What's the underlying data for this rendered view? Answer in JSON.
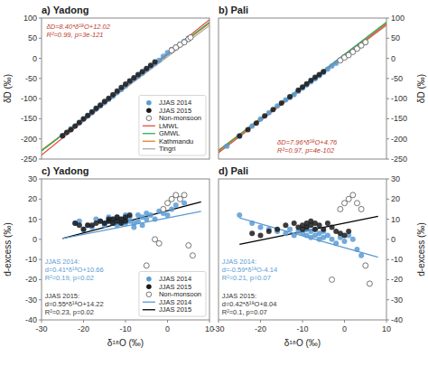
{
  "chart_data": [
    {
      "type": "scatter",
      "title": "a) Yadong",
      "y_label": "δD (‰)",
      "xlim": [
        -30,
        10
      ],
      "ylim": [
        -250,
        100
      ],
      "yticks": [
        -250,
        -200,
        -150,
        -100,
        -50,
        0,
        50,
        100
      ],
      "tick_labels": "y",
      "grid": false,
      "legend": "lower right",
      "annotations": [
        {
          "text": "δD=8.40*δ¹⁸O+12.02\nR²=0.99, p=3e-121",
          "color": "#c0392b"
        }
      ],
      "series": [
        {
          "name": "JJAS 2014",
          "type": "scatter",
          "color": "#5b9bd5",
          "x": [
            -25,
            -23,
            -21,
            -20,
            -19,
            -18,
            -17,
            -16,
            -15,
            -14,
            -13,
            -12,
            -11,
            -10,
            -9,
            -8,
            -7,
            -6,
            -5,
            -4,
            -3,
            -2,
            -1,
            0,
            1,
            2,
            3,
            4,
            5
          ],
          "values": [
            -192,
            -175,
            -160,
            -151,
            -143,
            -135,
            -126,
            -118,
            -110,
            -102,
            -94,
            -85,
            -77,
            -68,
            -59,
            -51,
            -44,
            -37,
            -28,
            -20,
            -13,
            -5,
            5,
            14,
            22,
            28,
            35,
            42,
            50
          ]
        },
        {
          "name": "JJAS 2015",
          "type": "scatter",
          "color": "#1a1a1a",
          "x": [
            -25,
            -24,
            -23,
            -22,
            -21,
            -20,
            -19,
            -18,
            -17,
            -16,
            -15,
            -14,
            -13,
            -12,
            -11,
            -10,
            -9,
            -8,
            -7,
            -6,
            -5,
            -4,
            -3
          ],
          "values": [
            -192,
            -184,
            -177,
            -168,
            -159,
            -150,
            -142,
            -133,
            -124,
            -116,
            -107,
            -99,
            -90,
            -81,
            -72,
            -64,
            -56,
            -48,
            -40,
            -33,
            -25,
            -17,
            -9
          ]
        },
        {
          "name": "Non-monsoon",
          "type": "scatter",
          "color": "#666666",
          "marker": "open",
          "x": [
            1,
            2,
            3,
            4,
            5,
            5.5
          ],
          "values": [
            20,
            27,
            34,
            40,
            48,
            52
          ]
        },
        {
          "name": "LMWL",
          "type": "line",
          "color": "#e74c3c",
          "x": [
            -30,
            10
          ],
          "values": [
            -239.98,
            96.02
          ]
        },
        {
          "name": "GMWL",
          "type": "line",
          "color": "#27ae60",
          "x": [
            -30,
            10
          ],
          "values": [
            -230,
            90
          ]
        },
        {
          "name": "Kathmandu",
          "type": "line",
          "color": "#e67e22",
          "x": [
            -30,
            10
          ],
          "values": [
            -228.5,
            87.5
          ]
        },
        {
          "name": "Tingri",
          "type": "line",
          "color": "#aaaaaa",
          "x": [
            -30,
            10
          ],
          "values": [
            -228.5,
            81.5
          ]
        }
      ]
    },
    {
      "type": "scatter",
      "title": "b) Pali",
      "y_label": "δD (‰)",
      "xlim": [
        -30,
        10
      ],
      "ylim": [
        -250,
        100
      ],
      "yticks": [
        -250,
        -200,
        -150,
        -100,
        -50,
        0,
        50,
        100
      ],
      "tick_labels": "y",
      "grid": false,
      "annotations": [
        {
          "text": "δD=7.96*δ¹⁸O+4.76\nR²=0.97, p=4e-102",
          "color": "#c0392b"
        }
      ],
      "series": [
        {
          "type": "scatter",
          "color": "#5b9bd5",
          "x": [
            -28,
            -25,
            -22,
            -20,
            -18,
            -16,
            -14,
            -13,
            -12,
            -11,
            -10,
            -9,
            -8,
            -7,
            -6,
            -5,
            -4,
            -3,
            -2,
            -1,
            0,
            2,
            3,
            4,
            5
          ],
          "values": [
            -218,
            -193,
            -168,
            -151,
            -135,
            -118,
            -103,
            -97,
            -90,
            -82,
            -74,
            -66,
            -58,
            -51,
            -43,
            -35,
            -27,
            -19,
            -12,
            -4,
            4,
            18,
            26,
            32,
            40
          ]
        },
        {
          "type": "scatter",
          "color": "#1a1a1a",
          "x": [
            -25,
            -23,
            -21,
            -19,
            -17,
            -15,
            -13,
            -11,
            -10,
            -9,
            -8,
            -7,
            -6,
            -5
          ],
          "values": [
            -193,
            -177,
            -161,
            -143,
            -127,
            -111,
            -95,
            -79,
            -71,
            -63,
            -55,
            -47,
            -40,
            -33
          ]
        },
        {
          "type": "scatter",
          "color": "#666666",
          "marker": "open",
          "x": [
            -1,
            0,
            1,
            2,
            3,
            4,
            5
          ],
          "values": [
            -5,
            2,
            8,
            16,
            24,
            32,
            40
          ]
        },
        {
          "type": "line",
          "color": "#e74c3c",
          "x": [
            -30,
            10
          ],
          "values": [
            -234.04,
            84.36
          ]
        },
        {
          "type": "line",
          "color": "#27ae60",
          "x": [
            -30,
            10
          ],
          "values": [
            -230,
            90
          ]
        },
        {
          "type": "line",
          "color": "#e67e22",
          "x": [
            -30,
            10
          ],
          "values": [
            -228.5,
            87.5
          ]
        },
        {
          "type": "line",
          "color": "#aaaaaa",
          "x": [
            -30,
            10
          ],
          "values": [
            -228.5,
            81.5
          ]
        }
      ]
    },
    {
      "type": "scatter",
      "title": "c) Yadong",
      "x_label": "δ¹⁸O (‰)",
      "y_label": "d-excess (‰)",
      "xlim": [
        -30,
        10
      ],
      "ylim": [
        -40,
        30
      ],
      "xticks": [
        -30,
        -20,
        -10,
        0,
        10
      ],
      "yticks": [
        -40,
        -30,
        -20,
        -10,
        0,
        10,
        20,
        30
      ],
      "grid": false,
      "legend": "lower right",
      "annotations": [
        {
          "text": "JJAS 2014:\nd=0.41*δ¹⁸O+10.66\nR²=0.19, p=0.02",
          "color": "#5b9bd5"
        },
        {
          "text": "JJAS 2015:\nd=0.55*δ¹⁸O+14.22\nR²=0.23, p=0.02",
          "color": "#333333"
        }
      ],
      "series": [
        {
          "name": "JJAS 2014",
          "type": "scatter",
          "color": "#5b9bd5",
          "x": [
            -22,
            -21,
            -20,
            -19,
            -18,
            -17,
            -16,
            -15,
            -15,
            -14,
            -14,
            -13,
            -13,
            -12,
            -12,
            -12,
            -11,
            -11,
            -10,
            -10,
            -10,
            -9,
            -9,
            -8,
            -8,
            -7,
            -7,
            -6,
            -6,
            -5,
            -5,
            -4,
            -3,
            -2,
            -1,
            0,
            1,
            2,
            3,
            4
          ],
          "values": [
            8,
            9,
            5,
            7,
            6,
            10,
            9,
            8,
            7,
            11,
            9,
            8,
            10,
            11,
            9,
            7,
            10,
            8,
            12,
            10,
            8,
            11,
            9,
            8,
            6,
            12,
            9,
            11,
            7,
            13,
            10,
            12,
            10,
            14,
            13,
            12,
            15,
            17,
            20,
            18
          ]
        },
        {
          "name": "JJAS 2015",
          "type": "scatter",
          "color": "#1a1a1a",
          "x": [
            -22,
            -21,
            -20,
            -19,
            -18,
            -17,
            -16,
            -15,
            -14,
            -14,
            -13,
            -13,
            -12,
            -12,
            -11,
            -11,
            -10,
            -10,
            -9
          ],
          "values": [
            8,
            7,
            5,
            7,
            7,
            8,
            9,
            8,
            10,
            9,
            10,
            8,
            11,
            9,
            10,
            8,
            11,
            9,
            12
          ]
        },
        {
          "name": "Non-monsoon",
          "type": "scatter",
          "color": "#666666",
          "marker": "open",
          "x": [
            -5,
            -3,
            -2,
            -1,
            0,
            1,
            2,
            3,
            4,
            5,
            6
          ],
          "values": [
            -13,
            0,
            -2,
            15,
            18,
            20,
            22,
            20,
            22,
            -3,
            -8
          ]
        },
        {
          "name": "JJAS 2014",
          "type": "line",
          "color": "#5b9bd5",
          "x": [
            -25,
            8
          ],
          "values": [
            0.41,
            13.94
          ]
        },
        {
          "name": "JJAS 2015",
          "type": "line",
          "color": "#000000",
          "x": [
            -25,
            8
          ],
          "values": [
            0.47,
            18.62
          ]
        }
      ]
    },
    {
      "type": "scatter",
      "title": "d) Pali",
      "x_label": "δ¹⁸O (‰)",
      "y_label": "d-excess (‰)",
      "xlim": [
        -30,
        10
      ],
      "ylim": [
        -40,
        30
      ],
      "xticks": [
        -30,
        -20,
        -10,
        0,
        10
      ],
      "yticks": [
        -40,
        -30,
        -20,
        -10,
        0,
        10,
        20,
        30
      ],
      "grid": false,
      "annotations": [
        {
          "text": "JJAS 2014:\nd=-0.59*δ¹⁸O-4.14\nR²=0.21, p=0.07",
          "color": "#5b9bd5"
        },
        {
          "text": "JJAS 2015:\nd=0.42*δ¹⁸O+8.04\nR²=0.1, p=0.07",
          "color": "#333333"
        }
      ],
      "series": [
        {
          "type": "scatter",
          "color": "#5b9bd5",
          "x": [
            -25,
            -22,
            -20,
            -18,
            -16,
            -14,
            -13,
            -12,
            -11,
            -10,
            -9,
            -9,
            -8,
            -8,
            -7,
            -7,
            -6,
            -6,
            -5,
            -5,
            -4,
            -3,
            -2,
            -1,
            0,
            1,
            2,
            3,
            4
          ],
          "values": [
            12,
            8,
            6,
            5,
            4,
            3,
            5,
            2,
            4,
            3,
            5,
            2,
            4,
            1,
            5,
            2,
            3,
            0,
            4,
            1,
            2,
            0,
            -2,
            1,
            -1,
            2,
            0,
            -5,
            -8
          ]
        },
        {
          "type": "scatter",
          "color": "#1a1a1a",
          "x": [
            -22,
            -20,
            -18,
            -16,
            -14,
            -12,
            -11,
            -10,
            -10,
            -9,
            -9,
            -8,
            -8,
            -7,
            -7,
            -6,
            -5,
            -4,
            -3,
            -2,
            -1,
            0,
            1
          ],
          "values": [
            3,
            2,
            4,
            5,
            7,
            8,
            6,
            7,
            5,
            8,
            6,
            9,
            7,
            8,
            5,
            7,
            5,
            8,
            6,
            4,
            3,
            2,
            4
          ]
        },
        {
          "type": "scatter",
          "color": "#666666",
          "marker": "open",
          "x": [
            -3,
            -1,
            0,
            1,
            2,
            3,
            4,
            5,
            6
          ],
          "values": [
            -20,
            15,
            18,
            20,
            22,
            18,
            15,
            -13,
            -22
          ]
        },
        {
          "type": "line",
          "color": "#5b9bd5",
          "x": [
            -25,
            8
          ],
          "values": [
            10.61,
            -8.86
          ]
        },
        {
          "type": "line",
          "color": "#000000",
          "x": [
            -25,
            8
          ],
          "values": [
            -2.46,
            11.4
          ]
        }
      ]
    }
  ]
}
